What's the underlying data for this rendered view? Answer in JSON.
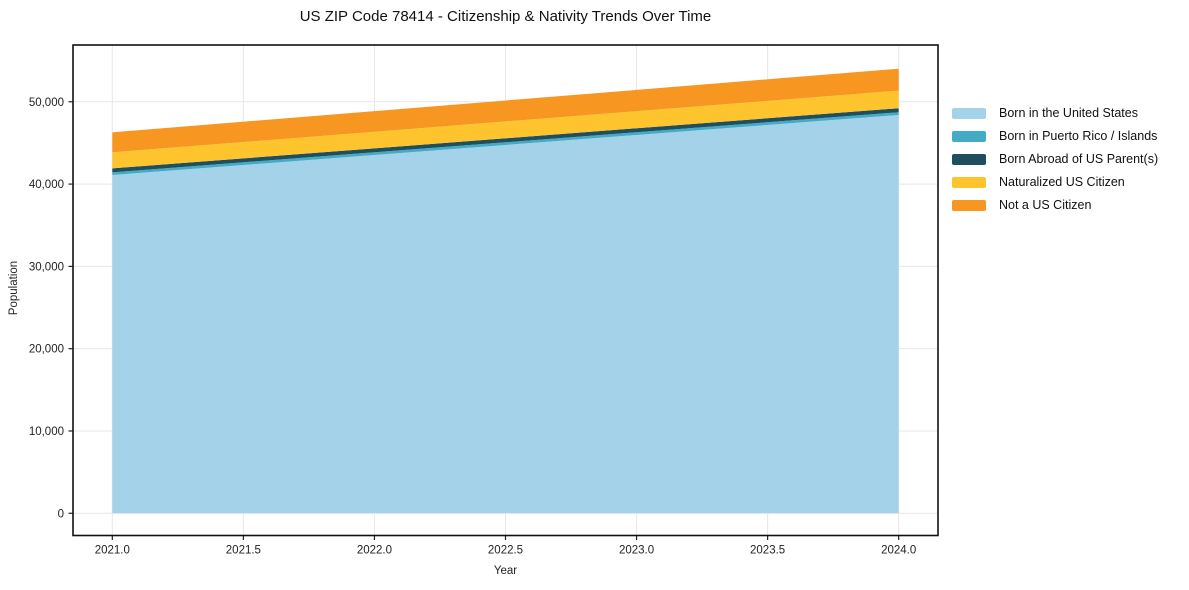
{
  "chart_data": {
    "type": "area",
    "stacked": true,
    "title": "US ZIP Code 78414 - Citizenship & Nativity Trends Over Time",
    "xlabel": "Year",
    "ylabel": "Population",
    "x": [
      2021,
      2022,
      2023,
      2024
    ],
    "series": [
      {
        "name": "Born in the United States",
        "color": "#A3D2E9",
        "values": [
          41100,
          43533,
          45967,
          48400
        ]
      },
      {
        "name": "Born in Puerto Rico / Islands",
        "color": "#44ABC7",
        "values": [
          330,
          330,
          330,
          330
        ]
      },
      {
        "name": "Born Abroad of US Parent(s)",
        "color": "#1F4E5E",
        "values": [
          480,
          483,
          487,
          490
        ]
      },
      {
        "name": "Naturalized US Citizen",
        "color": "#FDC42E",
        "values": [
          1950,
          2013,
          2077,
          2140
        ]
      },
      {
        "name": "Not a US Citizen",
        "color": "#F79621",
        "values": [
          2430,
          2507,
          2583,
          2660
        ]
      }
    ],
    "xticks": [
      2021.0,
      2021.5,
      2022.0,
      2022.5,
      2023.0,
      2023.5,
      2024.0
    ],
    "yticks": [
      0,
      10000,
      20000,
      30000,
      40000,
      50000
    ],
    "xlim": [
      2020.85,
      2024.15
    ],
    "ylim": [
      -2700,
      56900
    ],
    "grid": true,
    "grid_color": "#e7e7e7",
    "frame_color": "#111111",
    "legend_position": "right",
    "legend_frame": false
  }
}
